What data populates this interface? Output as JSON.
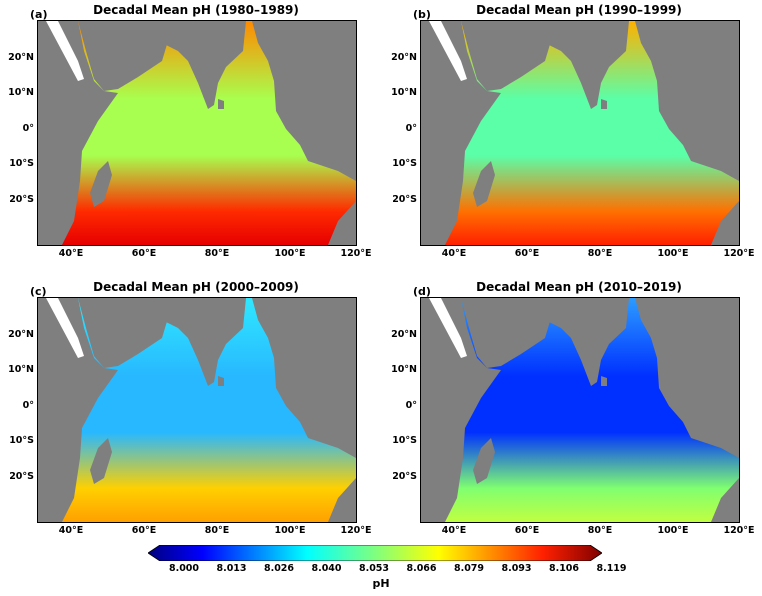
{
  "panels": [
    {
      "label": "(a)",
      "title": "Decadal Mean pH (1980–1989)"
    },
    {
      "label": "(b)",
      "title": "Decadal Mean pH (1990–1999)"
    },
    {
      "label": "(c)",
      "title": "Decadal Mean pH (2000–2009)"
    },
    {
      "label": "(d)",
      "title": "Decadal Mean pH (2010–2019)"
    }
  ],
  "axes": {
    "lat_labels": [
      "20°N",
      "10°N",
      "0°",
      "10°S",
      "20°S"
    ],
    "lon_labels": [
      "40°E",
      "60°E",
      "80°E",
      "100°E",
      "120°E"
    ]
  },
  "colorbar": {
    "label": "pH",
    "ticks": [
      "8.000",
      "8.013",
      "8.026",
      "8.040",
      "8.053",
      "8.066",
      "8.079",
      "8.093",
      "8.106",
      "8.119"
    ]
  },
  "colors": {
    "land": "#7f7f7f",
    "scale": [
      "#00007f",
      "#0000ff",
      "#007fff",
      "#00ffff",
      "#7fff7f",
      "#ffff00",
      "#ff7f00",
      "#ff0000",
      "#7f0000"
    ]
  },
  "map_values": [
    {
      "decade": "1980–1989",
      "north": "orange-red",
      "equator": "green-yellow",
      "south": "red"
    },
    {
      "decade": "1990–1999",
      "north": "yellow-orange",
      "equator": "cyan-green",
      "south": "orange-red"
    },
    {
      "decade": "2000–2009",
      "north": "cyan",
      "equator": "light blue",
      "south": "yellow-orange"
    },
    {
      "decade": "2010–2019",
      "north": "light blue",
      "equator": "blue",
      "south": "green-yellow"
    }
  ]
}
